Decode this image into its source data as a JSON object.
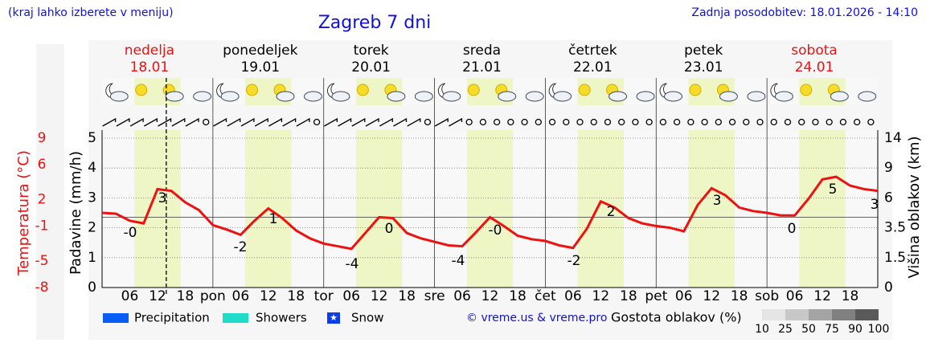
{
  "header": {
    "note": "(kraj lahko izberete v meniju)",
    "updated": "Zadnja posodobitev: 18.01.2026 - 14:10"
  },
  "chart_data": {
    "type": "line",
    "title": "Zagreb 7 dni",
    "days": [
      {
        "name": "nedelja",
        "date": "18.01",
        "weekend": true
      },
      {
        "name": "ponedeljek",
        "date": "19.01",
        "weekend": false
      },
      {
        "name": "torek",
        "date": "20.01",
        "weekend": false
      },
      {
        "name": "sreda",
        "date": "21.01",
        "weekend": false
      },
      {
        "name": "četrtek",
        "date": "22.01",
        "weekend": false
      },
      {
        "name": "petek",
        "date": "23.01",
        "weekend": false
      },
      {
        "name": "sobota",
        "date": "24.01",
        "weekend": true
      }
    ],
    "categories": [
      "06",
      "12",
      "18",
      "pon",
      "06",
      "12",
      "18",
      "tor",
      "06",
      "12",
      "18",
      "sre",
      "06",
      "12",
      "18",
      "čet",
      "06",
      "12",
      "18",
      "pet",
      "06",
      "12",
      "18",
      "sob",
      "06",
      "12",
      "18"
    ],
    "xlim": [
      0,
      168
    ],
    "ylabel": "Padavine (mm/h)",
    "ylim": [
      0,
      5
    ],
    "yticks": [
      0,
      1,
      2,
      3,
      4,
      5
    ],
    "y2label": "Temperatura (°C)",
    "y2lim": [
      -8,
      9
    ],
    "y2ticks": [
      9,
      6,
      2,
      -1,
      -5,
      -8
    ],
    "y3label": "Višina oblakov (km)",
    "y3ticks": [
      0,
      1.5,
      3.5,
      6,
      9,
      14
    ],
    "grid": true,
    "series": [
      {
        "axis": "y2",
        "color": "#ee1111",
        "x": [
          0,
          3,
          6,
          9,
          12,
          15,
          18,
          21,
          24,
          27,
          30,
          33,
          36,
          39,
          42,
          45,
          48,
          51,
          54,
          57,
          60,
          63,
          66,
          69,
          72,
          75,
          78,
          81,
          84,
          87,
          90,
          93,
          96,
          99,
          102,
          105,
          108,
          111,
          114,
          117,
          120,
          123,
          126,
          129,
          132,
          135,
          138,
          141,
          144,
          147,
          150,
          153,
          156,
          159,
          162,
          165,
          168
        ],
        "values": [
          0.5,
          0.4,
          -0.4,
          -0.7,
          3.2,
          3.0,
          1.7,
          0.8,
          -0.9,
          -1.4,
          -2.0,
          -0.4,
          1.0,
          -0.1,
          -1.5,
          -2.4,
          -3.0,
          -3.3,
          -3.6,
          -1.8,
          0.0,
          -0.1,
          -1.8,
          -2.4,
          -2.8,
          -3.2,
          -3.3,
          -1.7,
          0.0,
          -1.0,
          -2.1,
          -2.5,
          -2.7,
          -3.2,
          -3.5,
          -1.3,
          1.8,
          1.1,
          -0.1,
          -0.7,
          -1.0,
          -1.2,
          -1.6,
          1.4,
          3.3,
          2.5,
          1.1,
          0.7,
          0.5,
          0.2,
          0.2,
          2.1,
          4.3,
          4.6,
          3.6,
          3.2,
          3.0
        ]
      }
    ],
    "temp_labels": [
      "-0",
      "3",
      "1",
      "-2",
      "0",
      "-4",
      "-0",
      "-4",
      "2",
      "-2",
      "3",
      "0",
      "5",
      "3"
    ],
    "legend": [
      {
        "name": "Precipitation",
        "color": "#0a5cf5"
      },
      {
        "name": "Showers",
        "color": "#1edcc8"
      },
      {
        "name": "Snow",
        "color": "#0a3cf0"
      }
    ],
    "copyright": "© vreme.us & vreme.pro",
    "cloud_density": {
      "title": "Gostota oblakov (%)",
      "ticks": [
        10,
        25,
        50,
        75,
        90,
        100
      ],
      "colors": [
        "#e4e4e4",
        "#c8c8c8",
        "#a4a4a4",
        "#808080",
        "#5a5a5a"
      ]
    }
  }
}
